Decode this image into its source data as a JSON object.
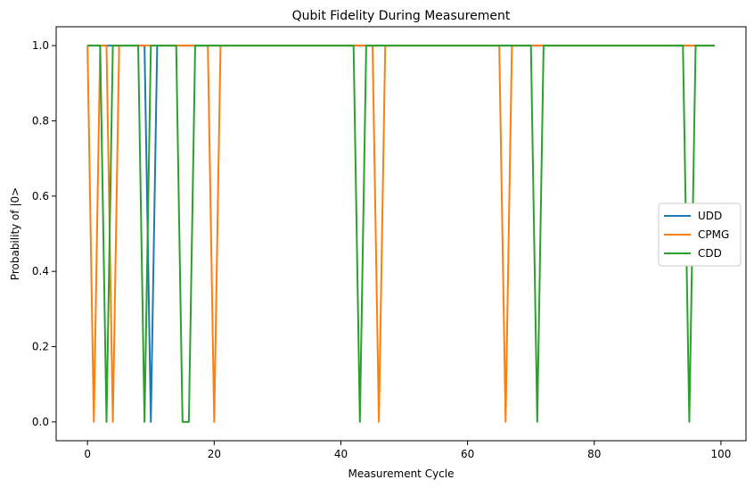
{
  "chart_data": {
    "type": "line",
    "title": "Qubit Fidelity During Measurement",
    "xlabel": "Measurement Cycle",
    "ylabel": "Probability of |0>",
    "xlim": [
      -4.95,
      103.95
    ],
    "ylim": [
      -0.05,
      1.05
    ],
    "xticks": [
      0,
      20,
      40,
      60,
      80,
      100
    ],
    "yticks": [
      0.0,
      0.2,
      0.4,
      0.6,
      0.8,
      1.0
    ],
    "xtick_labels": [
      "0",
      "20",
      "40",
      "60",
      "80",
      "100"
    ],
    "ytick_labels": [
      "0.0",
      "0.2",
      "0.4",
      "0.6",
      "0.8",
      "1.0"
    ],
    "grid": false,
    "legend_position": "center-right",
    "x_range": [
      0,
      99
    ],
    "series": [
      {
        "name": "UDD",
        "color": "#1f77b4",
        "zeros": [
          10
        ]
      },
      {
        "name": "CPMG",
        "color": "#ff7f0e",
        "zeros": [
          1,
          4,
          20,
          46,
          66
        ]
      },
      {
        "name": "CDD",
        "color": "#2ca02c",
        "zeros": [
          3,
          9,
          15,
          16,
          43,
          71,
          95
        ]
      }
    ]
  }
}
